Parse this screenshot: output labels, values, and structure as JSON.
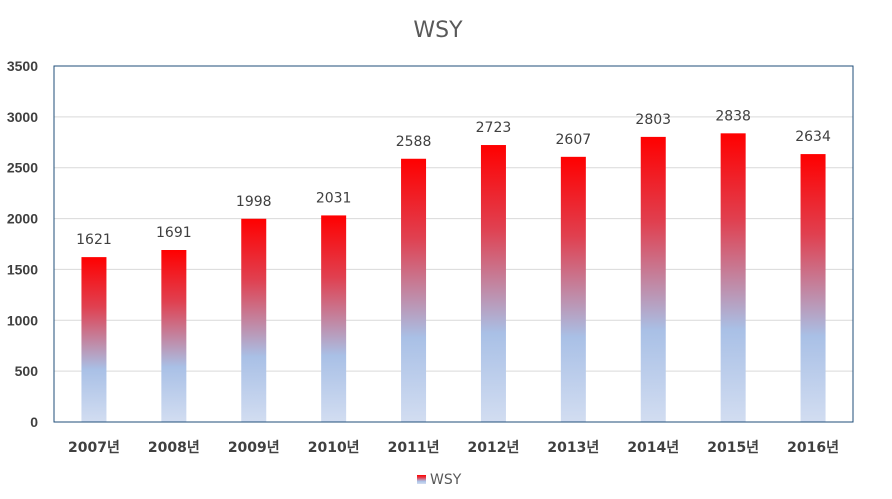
{
  "chart_data": {
    "type": "bar",
    "title": "WSY",
    "categories": [
      "2007년",
      "2008년",
      "2009년",
      "2010년",
      "2011년",
      "2012년",
      "2013년",
      "2014년",
      "2015년",
      "2016년"
    ],
    "series": [
      {
        "name": "WSY",
        "values": [
          1621,
          1691,
          1998,
          2031,
          2588,
          2723,
          2607,
          2803,
          2838,
          2634
        ]
      }
    ],
    "ylim": [
      0,
      3500
    ],
    "yticks": [
      "0",
      "500",
      "1000",
      "1500",
      "2000",
      "2500",
      "3000",
      "3500"
    ],
    "ytick_values": [
      0,
      500,
      1000,
      1500,
      2000,
      2500,
      3000,
      3500
    ],
    "data_labels": true,
    "grid": true,
    "legend_position": "bottom",
    "colors": {
      "bar_top": "#ff0000",
      "bar_mid": "#a9c0e6",
      "bar_bottom": "#d2ddf1",
      "gridline": "#d9d9d9",
      "plot_border": "#1f4e79"
    }
  }
}
